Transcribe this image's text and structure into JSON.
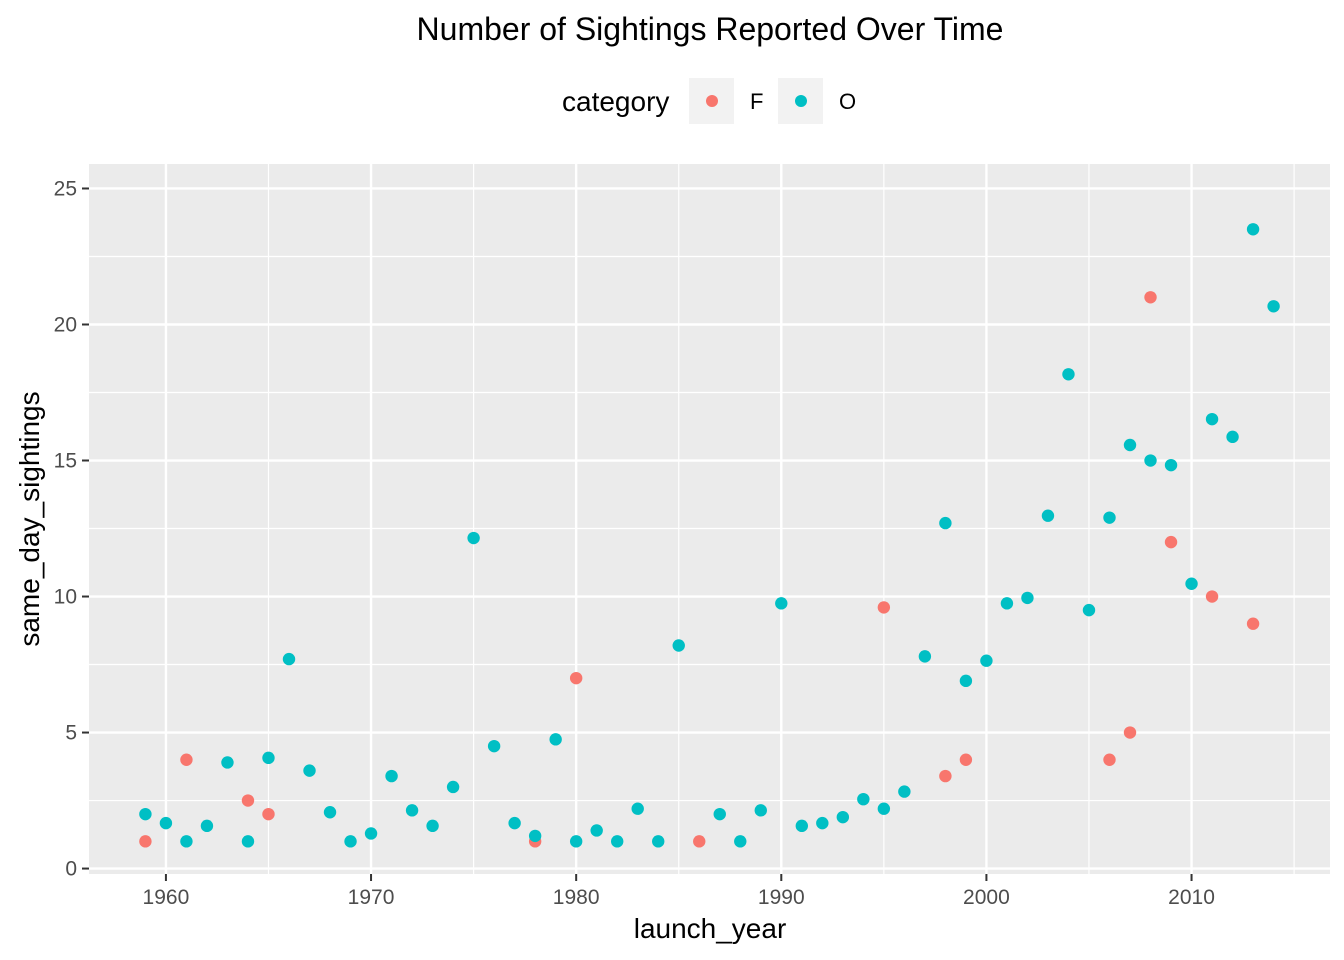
{
  "chart_data": {
    "type": "scatter",
    "title": "Number of Sightings Reported Over Time",
    "xlabel": "launch_year",
    "ylabel": "same_day_sightings",
    "xlim": [
      1956.25,
      2016.75
    ],
    "ylim": [
      -0.2,
      25
    ],
    "x_ticks": [
      1960,
      1970,
      1980,
      1990,
      2000,
      2010
    ],
    "y_ticks": [
      0,
      5,
      10,
      15,
      20,
      25
    ],
    "grid": true,
    "legend": {
      "title": "category",
      "position": "top",
      "entries": [
        {
          "label": "F",
          "color": "#F8766D"
        },
        {
          "label": "O",
          "color": "#00BFC4"
        }
      ]
    },
    "panel_background": "#EBEBEB",
    "series": [
      {
        "name": "F",
        "color": "#F8766D",
        "points": [
          [
            1959,
            1
          ],
          [
            1961,
            4
          ],
          [
            1964,
            2.5
          ],
          [
            1965,
            2
          ],
          [
            1978,
            1
          ],
          [
            1980,
            7
          ],
          [
            1986,
            1
          ],
          [
            1995,
            9.6
          ],
          [
            1998,
            3.4
          ],
          [
            1999,
            4
          ],
          [
            2006,
            4
          ],
          [
            2007,
            5
          ],
          [
            2008,
            21
          ],
          [
            2009,
            12
          ],
          [
            2011,
            10
          ],
          [
            2013,
            9
          ]
        ]
      },
      {
        "name": "O",
        "color": "#00BFC4",
        "points": [
          [
            1959,
            2
          ],
          [
            1960,
            1.67
          ],
          [
            1961,
            1
          ],
          [
            1962,
            1.57
          ],
          [
            1963,
            3.9
          ],
          [
            1964,
            1
          ],
          [
            1965,
            4.07
          ],
          [
            1966,
            7.7
          ],
          [
            1967,
            3.6
          ],
          [
            1968,
            2.07
          ],
          [
            1969,
            1
          ],
          [
            1970,
            1.29
          ],
          [
            1971,
            3.4
          ],
          [
            1972,
            2.14
          ],
          [
            1973,
            1.57
          ],
          [
            1974,
            3
          ],
          [
            1975,
            12.15
          ],
          [
            1976,
            4.5
          ],
          [
            1977,
            1.67
          ],
          [
            1978,
            1.2
          ],
          [
            1979,
            4.75
          ],
          [
            1980,
            1
          ],
          [
            1981,
            1.4
          ],
          [
            1982,
            1
          ],
          [
            1983,
            2.2
          ],
          [
            1984,
            1
          ],
          [
            1985,
            8.2
          ],
          [
            1987,
            2
          ],
          [
            1988,
            1
          ],
          [
            1989,
            2.14
          ],
          [
            1990,
            9.75
          ],
          [
            1991,
            1.57
          ],
          [
            1992,
            1.67
          ],
          [
            1993,
            1.89
          ],
          [
            1994,
            2.55
          ],
          [
            1995,
            2.2
          ],
          [
            1996,
            2.83
          ],
          [
            1997,
            7.8
          ],
          [
            1998,
            12.7
          ],
          [
            1999,
            6.9
          ],
          [
            2000,
            7.64
          ],
          [
            2001,
            9.75
          ],
          [
            2002,
            9.95
          ],
          [
            2003,
            12.97
          ],
          [
            2004,
            18.17
          ],
          [
            2005,
            9.5
          ],
          [
            2006,
            12.9
          ],
          [
            2007,
            15.57
          ],
          [
            2008,
            15
          ],
          [
            2009,
            14.83
          ],
          [
            2010,
            10.47
          ],
          [
            2011,
            16.52
          ],
          [
            2012,
            15.87
          ],
          [
            2013,
            23.5
          ],
          [
            2014,
            20.67
          ]
        ]
      }
    ]
  }
}
